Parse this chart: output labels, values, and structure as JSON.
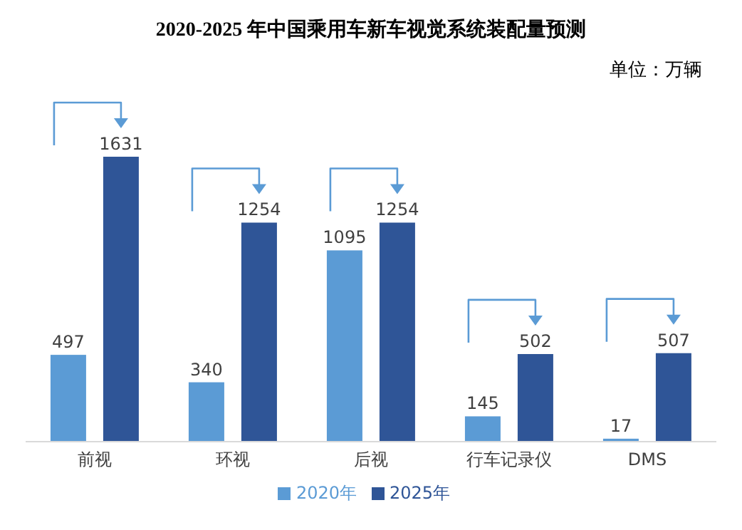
{
  "chart_data": {
    "type": "bar",
    "title": "2020-2025 年中国乘用车新车视觉系统装配量预测",
    "annotations": [
      "单位：万辆"
    ],
    "categories": [
      "前视",
      "环视",
      "后视",
      "行车记录仪",
      "DMS"
    ],
    "series": [
      {
        "name": "2020年",
        "color": "#5b9bd5",
        "values": [
          497,
          340,
          1095,
          145,
          17
        ]
      },
      {
        "name": "2025年",
        "color": "#2f5597",
        "values": [
          1631,
          1254,
          1254,
          502,
          507
        ]
      }
    ],
    "data_labels": true,
    "legend": "bottom",
    "grid": false
  }
}
